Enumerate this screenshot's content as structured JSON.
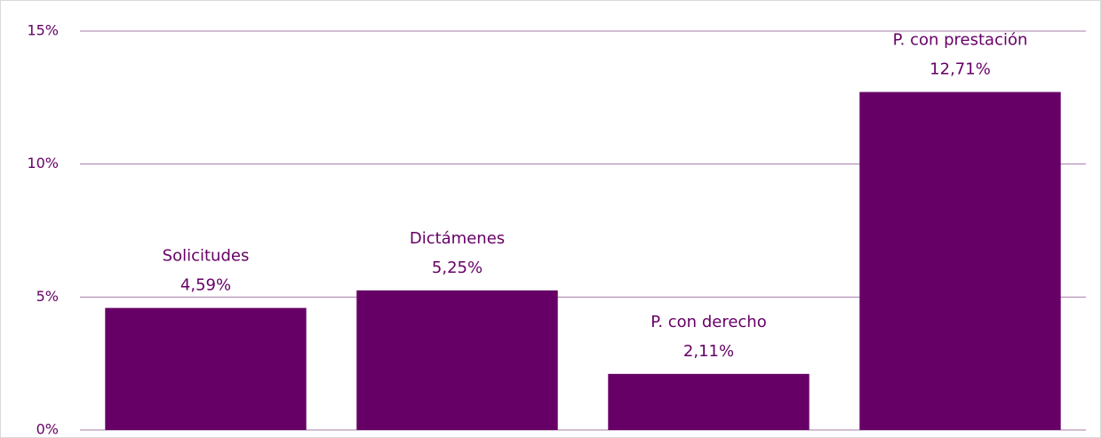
{
  "chart_data": {
    "type": "bar",
    "categories": [
      "Solicitudes",
      "Dictámenes",
      "P. con derecho",
      "P. con prestación"
    ],
    "values": [
      4.59,
      5.25,
      2.11,
      12.71
    ],
    "value_labels": [
      "4,59%",
      "5,25%",
      "2,11%",
      "12,71%"
    ],
    "color": "#660066",
    "ylim": [
      0,
      15
    ],
    "yticks": [
      {
        "value": 0,
        "label": "0%"
      },
      {
        "value": 5,
        "label": "5%"
      },
      {
        "value": 10,
        "label": "10%"
      },
      {
        "value": 15,
        "label": "15%"
      }
    ],
    "grid": true
  }
}
